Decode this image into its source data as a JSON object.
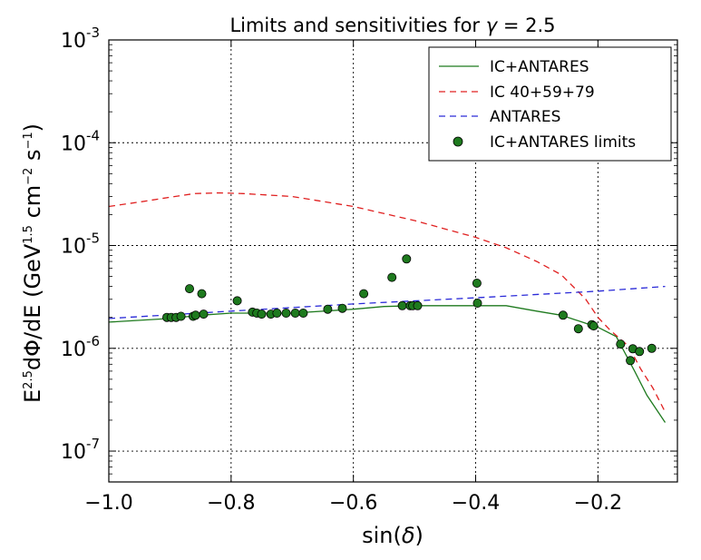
{
  "chart_data": {
    "type": "line",
    "title_prefix": "Limits and sensitivities for",
    "title_symbol": "γ",
    "title_suffix": "= 2.5",
    "xlabel_prefix": "sin(",
    "xlabel_symbol": "δ",
    "xlabel_suffix": ")",
    "ylabel": {
      "e": "E",
      "e_exp": "2.5",
      "mid": "dΦ/dE (GeV",
      "gev_exp": "1.5",
      "cm": " cm",
      "cm_exp": "−2",
      "s": " s",
      "s_exp": "−1",
      "close": ")"
    },
    "xlim": [
      -1.0,
      -0.07
    ],
    "ylim_log10": [
      -7.3,
      -3.0
    ],
    "yscale": "log",
    "grid": true,
    "legend_position": "upper-right",
    "x_ticks": [
      {
        "value": -1.0,
        "label": "−1.0"
      },
      {
        "value": -0.8,
        "label": "−0.8"
      },
      {
        "value": -0.6,
        "label": "−0.6"
      },
      {
        "value": -0.4,
        "label": "−0.4"
      },
      {
        "value": -0.2,
        "label": "−0.2"
      }
    ],
    "y_ticks": [
      {
        "exp": -7,
        "base": "10",
        "power": "-7"
      },
      {
        "exp": -6,
        "base": "10",
        "power": "-6"
      },
      {
        "exp": -5,
        "base": "10",
        "power": "-5"
      },
      {
        "exp": -4,
        "base": "10",
        "power": "-4"
      },
      {
        "exp": -3,
        "base": "10",
        "power": "-3"
      }
    ],
    "series": [
      {
        "name": "IC+ANTARES",
        "kind": "line",
        "style": "solid",
        "color": "#1e7a1e",
        "x": [
          -1.0,
          -0.9,
          -0.85,
          -0.8,
          -0.7,
          -0.6,
          -0.55,
          -0.5,
          -0.45,
          -0.4,
          -0.35,
          -0.3,
          -0.26,
          -0.2,
          -0.17,
          -0.14,
          -0.12,
          -0.09
        ],
        "y": [
          1.8e-06,
          1.95e-06,
          2.1e-06,
          2.2e-06,
          2.2e-06,
          2.4e-06,
          2.55e-06,
          2.6e-06,
          2.6e-06,
          2.6e-06,
          2.6e-06,
          2.3e-06,
          2.1e-06,
          1.6e-06,
          1.3e-06,
          6e-07,
          3.5e-07,
          1.9e-07
        ]
      },
      {
        "name": "IC 40+59+79",
        "kind": "line",
        "style": "dashed",
        "color": "#e02020",
        "x": [
          -1.0,
          -0.95,
          -0.9,
          -0.86,
          -0.82,
          -0.78,
          -0.7,
          -0.6,
          -0.5,
          -0.4,
          -0.35,
          -0.3,
          -0.26,
          -0.22,
          -0.2,
          -0.18,
          -0.15,
          -0.13,
          -0.11,
          -0.09
        ],
        "y": [
          2.4e-05,
          2.65e-05,
          2.95e-05,
          3.2e-05,
          3.25e-05,
          3.2e-05,
          3e-05,
          2.4e-05,
          1.75e-05,
          1.2e-05,
          9.5e-06,
          7e-06,
          5.2e-06,
          3e-06,
          2e-06,
          1.5e-06,
          1.05e-06,
          6.3e-07,
          4.1e-07,
          2.4e-07
        ]
      },
      {
        "name": "ANTARES",
        "kind": "line",
        "style": "dashed",
        "color": "#2a2ad8",
        "x": [
          -1.0,
          -0.8,
          -0.6,
          -0.4,
          -0.2,
          -0.09
        ],
        "y": [
          1.95e-06,
          2.3e-06,
          2.7e-06,
          3.1e-06,
          3.6e-06,
          4e-06
        ]
      },
      {
        "name": "IC+ANTARES limits",
        "kind": "scatter",
        "color": "#1e7a1e",
        "x": [
          -0.905,
          -0.898,
          -0.89,
          -0.882,
          -0.868,
          -0.862,
          -0.858,
          -0.848,
          -0.845,
          -0.79,
          -0.765,
          -0.758,
          -0.75,
          -0.735,
          -0.725,
          -0.71,
          -0.695,
          -0.682,
          -0.642,
          -0.618,
          -0.583,
          -0.537,
          -0.52,
          -0.513,
          -0.507,
          -0.503,
          -0.495,
          -0.398,
          -0.397,
          -0.257,
          -0.232,
          -0.21,
          -0.207,
          -0.163,
          -0.147,
          -0.143,
          -0.132,
          -0.112
        ],
        "y": [
          2e-06,
          2e-06,
          2e-06,
          2.05e-06,
          3.8e-06,
          2.05e-06,
          2.1e-06,
          3.4e-06,
          2.15e-06,
          2.9e-06,
          2.25e-06,
          2.2e-06,
          2.15e-06,
          2.15e-06,
          2.2e-06,
          2.2e-06,
          2.2e-06,
          2.2e-06,
          2.4e-06,
          2.45e-06,
          3.4e-06,
          4.9e-06,
          2.6e-06,
          7.4e-06,
          2.6e-06,
          2.6e-06,
          2.6e-06,
          4.3e-06,
          2.75e-06,
          2.1e-06,
          1.55e-06,
          1.7e-06,
          1.65e-06,
          1.1e-06,
          7.6e-07,
          9.9e-07,
          9.3e-07,
          1e-06
        ]
      }
    ]
  }
}
